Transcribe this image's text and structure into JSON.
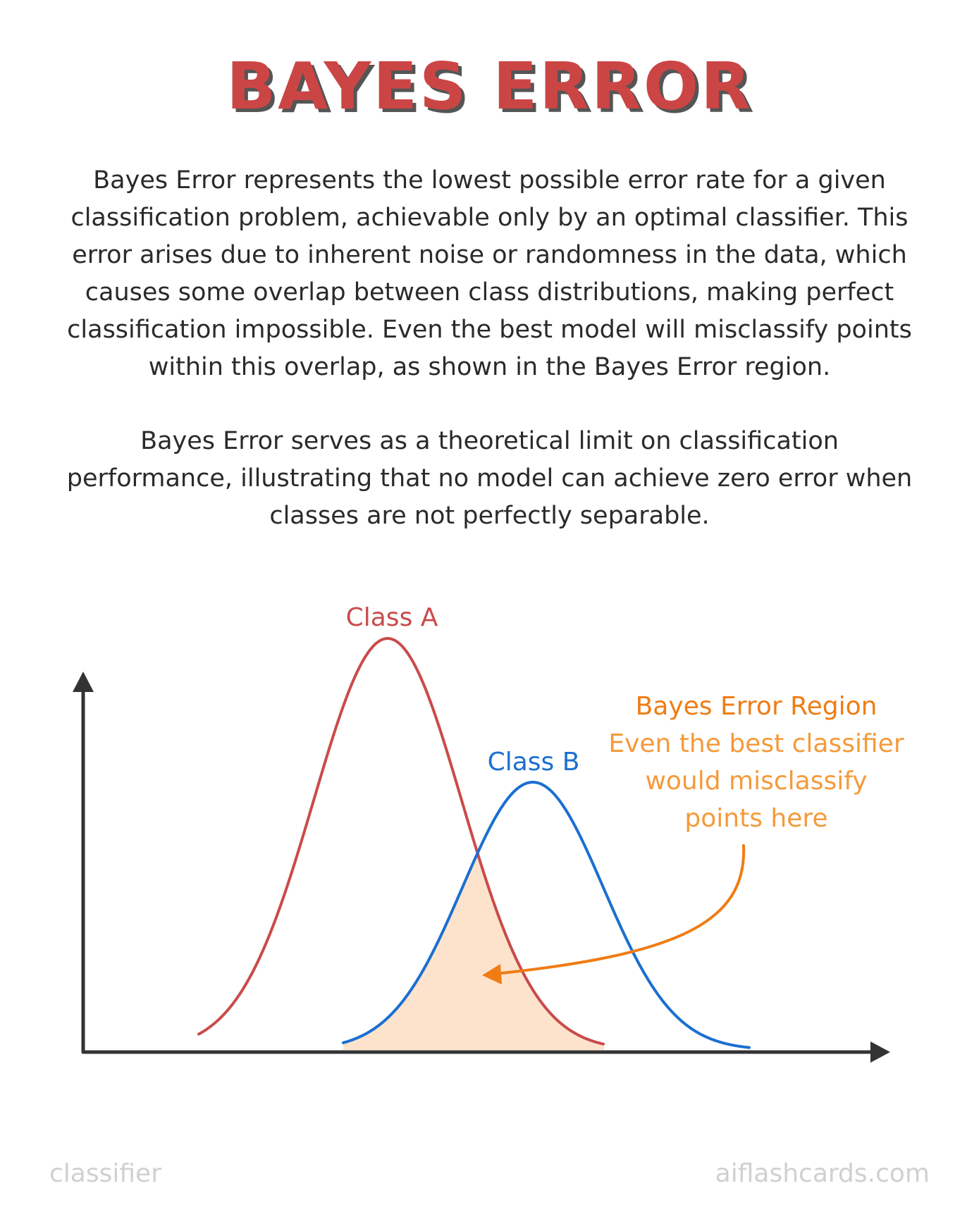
{
  "title": "BAYES ERROR",
  "paragraph_1": "Bayes Error represents the lowest possible error rate for a given classification problem, achievable only by an optimal classifier. This error arises due to inherent noise or randomness in the data, which causes some overlap between class distributions, making perfect classification impossible. Even the best model will misclassify points within this overlap, as shown in the Bayes Error region.",
  "paragraph_2": "Bayes Error serves as a theoretical limit on classification performance, illustrating that no model can achieve zero error when classes are not perfectly separable.",
  "diagram": {
    "class_a_label": "Class A",
    "class_b_label": "Class B",
    "annotation_title": "Bayes Error Region",
    "annotation_line_1": "Even the best classifier",
    "annotation_line_2": "would misclassify",
    "annotation_line_3": "points here",
    "colors": {
      "class_a": "#c94b4b",
      "class_b": "#1a6fd1",
      "overlap_fill": "#fde3cc",
      "annotation_title": "#f07c14",
      "annotation_body": "#f59a3a",
      "arrow": "#f07c14",
      "axis": "#333333"
    }
  },
  "footer": {
    "left": "classifier",
    "right": "aiflashcards.com"
  }
}
